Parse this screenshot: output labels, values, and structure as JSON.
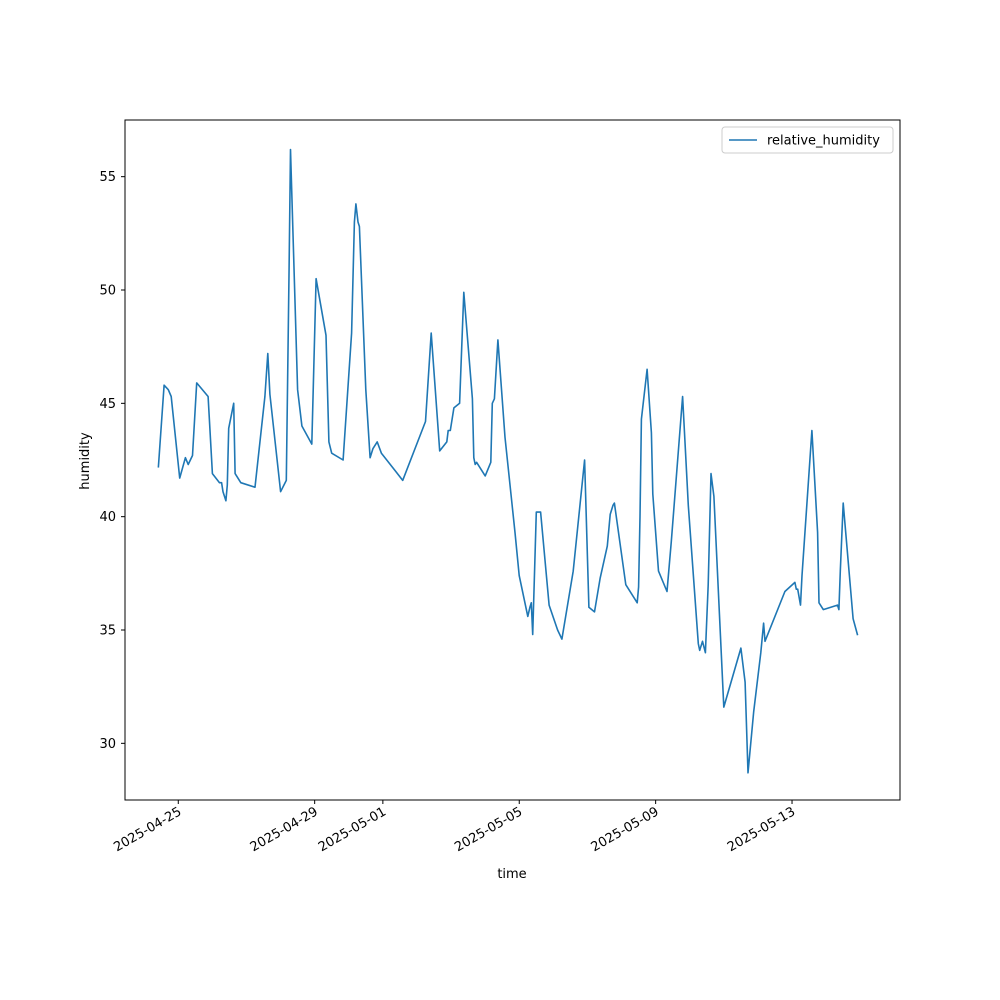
{
  "chart_data": {
    "type": "line",
    "xlabel": "time",
    "ylabel": "humidity",
    "xlim": [
      "2025-04-23T10:30",
      "2025-05-16T04:00"
    ],
    "ylim": [
      27.5,
      57.5
    ],
    "yticks": [
      30,
      35,
      40,
      45,
      50,
      55
    ],
    "xticks": [
      "2025-04-25",
      "2025-04-29",
      "2025-05-01",
      "2025-05-05",
      "2025-05-09",
      "2025-05-13"
    ],
    "grid": false,
    "legend_position": "upper right",
    "colors": {
      "series": "#1f77b4"
    },
    "series": [
      {
        "name": "relative_humidity",
        "points": [
          [
            "2025-04-24T10:00",
            42.2
          ],
          [
            "2025-04-24T14:00",
            45.8
          ],
          [
            "2025-04-24T17:00",
            45.6
          ],
          [
            "2025-04-24T19:00",
            45.3
          ],
          [
            "2025-04-25T01:00",
            41.7
          ],
          [
            "2025-04-25T05:00",
            42.6
          ],
          [
            "2025-04-25T07:00",
            42.3
          ],
          [
            "2025-04-25T10:00",
            42.7
          ],
          [
            "2025-04-25T13:00",
            45.9
          ],
          [
            "2025-04-25T21:00",
            45.3
          ],
          [
            "2025-04-26T00:00",
            41.9
          ],
          [
            "2025-04-26T05:00",
            41.5
          ],
          [
            "2025-04-26T06:30",
            41.5
          ],
          [
            "2025-04-26T07:30",
            41.1
          ],
          [
            "2025-04-26T09:30",
            40.7
          ],
          [
            "2025-04-26T10:30",
            41.4
          ],
          [
            "2025-04-26T11:30",
            43.9
          ],
          [
            "2025-04-26T15:00",
            45.0
          ],
          [
            "2025-04-26T16:00",
            41.9
          ],
          [
            "2025-04-26T20:00",
            41.5
          ],
          [
            "2025-04-27T06:00",
            41.3
          ],
          [
            "2025-04-27T13:00",
            45.3
          ],
          [
            "2025-04-27T15:00",
            47.2
          ],
          [
            "2025-04-27T16:30",
            45.4
          ],
          [
            "2025-04-28T00:00",
            41.1
          ],
          [
            "2025-04-28T04:00",
            41.6
          ],
          [
            "2025-04-28T06:00",
            51.0
          ],
          [
            "2025-04-28T07:00",
            56.2
          ],
          [
            "2025-04-28T12:00",
            45.6
          ],
          [
            "2025-04-28T15:00",
            44.0
          ],
          [
            "2025-04-28T22:00",
            43.2
          ],
          [
            "2025-04-29T01:00",
            50.5
          ],
          [
            "2025-04-29T08:00",
            48.0
          ],
          [
            "2025-04-29T10:00",
            43.3
          ],
          [
            "2025-04-29T12:00",
            42.8
          ],
          [
            "2025-04-29T20:00",
            42.5
          ],
          [
            "2025-04-30T02:00",
            48.1
          ],
          [
            "2025-04-30T04:00",
            53.0
          ],
          [
            "2025-04-30T05:00",
            53.8
          ],
          [
            "2025-04-30T06:30",
            53.0
          ],
          [
            "2025-04-30T07:30",
            52.8
          ],
          [
            "2025-04-30T12:00",
            45.6
          ],
          [
            "2025-04-30T15:00",
            42.6
          ],
          [
            "2025-04-30T17:00",
            43.0
          ],
          [
            "2025-04-30T20:00",
            43.3
          ],
          [
            "2025-04-30T23:00",
            42.8
          ],
          [
            "2025-05-01T09:00",
            42.0
          ],
          [
            "2025-05-01T14:00",
            41.6
          ],
          [
            "2025-05-02T06:00",
            44.2
          ],
          [
            "2025-05-02T10:00",
            48.1
          ],
          [
            "2025-05-02T16:00",
            42.9
          ],
          [
            "2025-05-02T21:00",
            43.3
          ],
          [
            "2025-05-02T22:00",
            43.8
          ],
          [
            "2025-05-02T23:30",
            43.8
          ],
          [
            "2025-05-03T02:00",
            44.8
          ],
          [
            "2025-05-03T06:00",
            45.0
          ],
          [
            "2025-05-03T09:00",
            49.9
          ],
          [
            "2025-05-03T15:00",
            45.2
          ],
          [
            "2025-05-03T16:00",
            42.6
          ],
          [
            "2025-05-03T17:00",
            42.3
          ],
          [
            "2025-05-03T18:00",
            42.4
          ],
          [
            "2025-05-04T00:00",
            41.8
          ],
          [
            "2025-05-04T04:00",
            42.4
          ],
          [
            "2025-05-04T05:00",
            45.0
          ],
          [
            "2025-05-04T06:30",
            45.2
          ],
          [
            "2025-05-04T09:00",
            47.8
          ],
          [
            "2025-05-04T14:00",
            43.5
          ],
          [
            "2025-05-04T21:00",
            39.3
          ],
          [
            "2025-05-05T00:00",
            37.4
          ],
          [
            "2025-05-05T06:00",
            35.6
          ],
          [
            "2025-05-05T07:30",
            36.0
          ],
          [
            "2025-05-05T08:30",
            36.2
          ],
          [
            "2025-05-05T09:30",
            34.8
          ],
          [
            "2025-05-05T12:00",
            40.2
          ],
          [
            "2025-05-05T15:00",
            40.2
          ],
          [
            "2025-05-05T21:00",
            36.1
          ],
          [
            "2025-05-06T03:00",
            35.0
          ],
          [
            "2025-05-06T06:00",
            34.6
          ],
          [
            "2025-05-06T14:00",
            37.6
          ],
          [
            "2025-05-06T22:00",
            42.5
          ],
          [
            "2025-05-07T01:00",
            36.0
          ],
          [
            "2025-05-07T05:00",
            35.8
          ],
          [
            "2025-05-07T09:00",
            37.3
          ],
          [
            "2025-05-07T14:00",
            38.7
          ],
          [
            "2025-05-07T16:00",
            40.1
          ],
          [
            "2025-05-07T18:00",
            40.5
          ],
          [
            "2025-05-07T19:00",
            40.6
          ],
          [
            "2025-05-08T03:00",
            37.0
          ],
          [
            "2025-05-08T11:00",
            36.2
          ],
          [
            "2025-05-08T12:00",
            36.9
          ],
          [
            "2025-05-08T13:00",
            40.0
          ],
          [
            "2025-05-08T14:00",
            44.3
          ],
          [
            "2025-05-08T18:00",
            46.5
          ],
          [
            "2025-05-08T21:00",
            43.7
          ],
          [
            "2025-05-08T22:00",
            41.0
          ],
          [
            "2025-05-09T02:00",
            37.6
          ],
          [
            "2025-05-09T08:00",
            36.7
          ],
          [
            "2025-05-09T11:00",
            38.9
          ],
          [
            "2025-05-09T19:00",
            45.3
          ],
          [
            "2025-05-09T23:00",
            40.5
          ],
          [
            "2025-05-10T06:00",
            34.4
          ],
          [
            "2025-05-10T07:00",
            34.1
          ],
          [
            "2025-05-10T09:00",
            34.5
          ],
          [
            "2025-05-10T11:00",
            34.0
          ],
          [
            "2025-05-10T13:00",
            37.0
          ],
          [
            "2025-05-10T15:00",
            41.9
          ],
          [
            "2025-05-10T17:00",
            40.9
          ],
          [
            "2025-05-11T00:00",
            31.6
          ],
          [
            "2025-05-11T12:00",
            34.2
          ],
          [
            "2025-05-11T15:00",
            32.7
          ],
          [
            "2025-05-11T17:00",
            28.7
          ],
          [
            "2025-05-11T21:00",
            31.4
          ],
          [
            "2025-05-12T02:00",
            34.0
          ],
          [
            "2025-05-12T04:00",
            35.3
          ],
          [
            "2025-05-12T05:00",
            34.5
          ],
          [
            "2025-05-12T19:00",
            36.7
          ],
          [
            "2025-05-13T02:00",
            37.1
          ],
          [
            "2025-05-13T03:00",
            36.8
          ],
          [
            "2025-05-13T04:00",
            36.8
          ],
          [
            "2025-05-13T06:00",
            36.1
          ],
          [
            "2025-05-13T07:00",
            37.4
          ],
          [
            "2025-05-13T14:00",
            43.8
          ],
          [
            "2025-05-13T18:00",
            39.3
          ],
          [
            "2025-05-13T19:00",
            36.2
          ],
          [
            "2025-05-13T22:00",
            35.9
          ],
          [
            "2025-05-14T08:00",
            36.1
          ],
          [
            "2025-05-14T09:00",
            35.9
          ],
          [
            "2025-05-14T10:00",
            37.6
          ],
          [
            "2025-05-14T12:00",
            40.6
          ],
          [
            "2025-05-14T19:00",
            35.5
          ],
          [
            "2025-05-14T22:00",
            34.8
          ]
        ]
      }
    ]
  }
}
